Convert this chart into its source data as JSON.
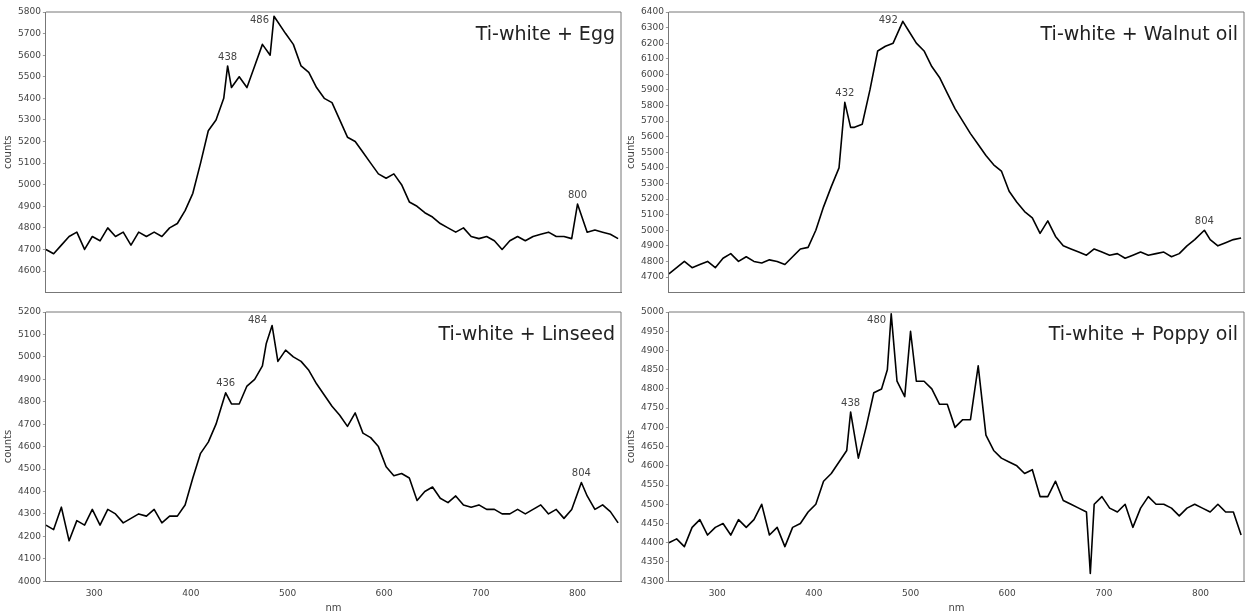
{
  "chart_data": [
    {
      "type": "line",
      "title": "Ti-white + Egg",
      "ylabel": "counts",
      "xlim": [
        250,
        845
      ],
      "xticks": [
        300,
        400,
        500,
        600,
        700,
        800
      ],
      "ylim": [
        4500,
        5800
      ],
      "yticks": [
        4600,
        4700,
        4800,
        4900,
        5000,
        5100,
        5200,
        5300,
        5400,
        5500,
        5600,
        5700,
        5800
      ],
      "tick_labels": "y",
      "grid": false,
      "legend": false,
      "marker": "none",
      "series": [
        {
          "color": "#000000",
          "x": [
            250,
            258,
            266,
            274,
            282,
            290,
            298,
            306,
            314,
            322,
            330,
            338,
            346,
            354,
            362,
            370,
            378,
            386,
            394,
            402,
            410,
            418,
            426,
            434,
            438,
            442,
            450,
            458,
            466,
            474,
            482,
            486,
            498,
            506,
            514,
            522,
            530,
            538,
            546,
            554,
            562,
            570,
            578,
            586,
            594,
            602,
            610,
            618,
            626,
            634,
            642,
            650,
            658,
            666,
            674,
            682,
            690,
            698,
            706,
            714,
            722,
            730,
            738,
            746,
            754,
            762,
            770,
            778,
            786,
            794,
            800,
            810,
            818,
            826,
            834,
            842
          ],
          "values": [
            4700,
            4680,
            4720,
            4760,
            4780,
            4700,
            4760,
            4740,
            4800,
            4760,
            4780,
            4720,
            4780,
            4760,
            4780,
            4760,
            4800,
            4820,
            4880,
            4960,
            5100,
            5250,
            5300,
            5400,
            5550,
            5450,
            5500,
            5450,
            5550,
            5650,
            5600,
            5780,
            5700,
            5650,
            5550,
            5520,
            5450,
            5400,
            5380,
            5300,
            5220,
            5200,
            5150,
            5100,
            5050,
            5030,
            5050,
            5000,
            4920,
            4900,
            4870,
            4850,
            4820,
            4800,
            4780,
            4800,
            4760,
            4750,
            4760,
            4740,
            4700,
            4740,
            4760,
            4740,
            4760,
            4770,
            4780,
            4760,
            4760,
            4750,
            4910,
            4780,
            4790,
            4780,
            4770,
            4750
          ]
        }
      ],
      "annotations": [
        {
          "text": "438",
          "x": 438,
          "y": 5550
        },
        {
          "text": "486",
          "x": 486,
          "y": 5780
        },
        {
          "text": "800",
          "x": 800,
          "y": 4910
        }
      ]
    },
    {
      "type": "line",
      "title": "Ti-white + Walnut oil",
      "ylabel": "counts",
      "xlim": [
        250,
        845
      ],
      "xticks": [
        300,
        400,
        500,
        600,
        700,
        800
      ],
      "ylim": [
        4600,
        6400
      ],
      "yticks": [
        4700,
        4800,
        4900,
        5000,
        5100,
        5200,
        5300,
        5400,
        5500,
        5600,
        5700,
        5800,
        5900,
        6000,
        6100,
        6200,
        6300,
        6400
      ],
      "tick_labels": "y",
      "grid": false,
      "legend": false,
      "marker": "none",
      "series": [
        {
          "color": "#000000",
          "x": [
            250,
            258,
            266,
            274,
            282,
            290,
            298,
            306,
            314,
            322,
            330,
            338,
            346,
            354,
            362,
            370,
            378,
            386,
            394,
            402,
            410,
            418,
            426,
            432,
            438,
            442,
            450,
            458,
            466,
            474,
            482,
            492,
            498,
            506,
            514,
            522,
            530,
            538,
            546,
            554,
            562,
            570,
            578,
            586,
            594,
            602,
            610,
            618,
            626,
            634,
            642,
            650,
            658,
            666,
            674,
            682,
            690,
            698,
            706,
            714,
            722,
            730,
            738,
            746,
            754,
            762,
            770,
            778,
            786,
            794,
            804,
            810,
            818,
            826,
            834,
            842
          ],
          "values": [
            4720,
            4760,
            4800,
            4760,
            4780,
            4800,
            4760,
            4820,
            4850,
            4800,
            4830,
            4800,
            4790,
            4810,
            4800,
            4780,
            4830,
            4880,
            4890,
            5000,
            5150,
            5280,
            5400,
            5820,
            5660,
            5660,
            5680,
            5900,
            6150,
            6180,
            6200,
            6340,
            6280,
            6200,
            6150,
            6050,
            5980,
            5880,
            5780,
            5700,
            5620,
            5550,
            5480,
            5420,
            5380,
            5250,
            5180,
            5120,
            5080,
            4980,
            5060,
            4960,
            4900,
            4880,
            4860,
            4840,
            4880,
            4860,
            4840,
            4850,
            4820,
            4840,
            4860,
            4840,
            4850,
            4860,
            4830,
            4850,
            4900,
            4940,
            5000,
            4940,
            4900,
            4920,
            4940,
            4950
          ]
        }
      ],
      "annotations": [
        {
          "text": "432",
          "x": 432,
          "y": 5820
        },
        {
          "text": "492",
          "x": 492,
          "y": 6340
        },
        {
          "text": "804",
          "x": 804,
          "y": 5000
        }
      ]
    },
    {
      "type": "line",
      "title": "Ti-white + Linseed",
      "xlabel": "nm",
      "ylabel": "counts",
      "xlim": [
        250,
        845
      ],
      "xticks": [
        300,
        400,
        500,
        600,
        700,
        800
      ],
      "ylim": [
        4000,
        5200
      ],
      "yticks": [
        4000,
        4100,
        4200,
        4300,
        4400,
        4500,
        4600,
        4700,
        4800,
        4900,
        5000,
        5100,
        5200
      ],
      "grid": false,
      "legend": false,
      "marker": "none",
      "series": [
        {
          "color": "#000000",
          "x": [
            250,
            258,
            266,
            274,
            282,
            290,
            298,
            306,
            314,
            322,
            330,
            338,
            346,
            354,
            362,
            370,
            378,
            386,
            394,
            402,
            410,
            418,
            426,
            436,
            442,
            450,
            458,
            466,
            474,
            478,
            484,
            490,
            498,
            506,
            514,
            522,
            530,
            538,
            546,
            554,
            562,
            570,
            578,
            586,
            594,
            602,
            610,
            618,
            626,
            634,
            642,
            650,
            658,
            666,
            674,
            682,
            690,
            698,
            706,
            714,
            722,
            730,
            738,
            746,
            754,
            762,
            770,
            778,
            786,
            794,
            804,
            810,
            818,
            826,
            834,
            842
          ],
          "values": [
            4250,
            4230,
            4330,
            4180,
            4270,
            4250,
            4320,
            4250,
            4320,
            4300,
            4260,
            4280,
            4300,
            4290,
            4320,
            4260,
            4290,
            4290,
            4340,
            4460,
            4570,
            4620,
            4700,
            4840,
            4790,
            4790,
            4870,
            4900,
            4960,
            5060,
            5140,
            4980,
            5030,
            5000,
            4980,
            4940,
            4880,
            4830,
            4780,
            4740,
            4690,
            4750,
            4660,
            4640,
            4600,
            4510,
            4470,
            4480,
            4460,
            4360,
            4400,
            4420,
            4370,
            4350,
            4380,
            4340,
            4330,
            4340,
            4320,
            4320,
            4300,
            4300,
            4320,
            4300,
            4320,
            4340,
            4300,
            4320,
            4280,
            4320,
            4440,
            4380,
            4320,
            4340,
            4310,
            4260
          ]
        }
      ],
      "annotations": [
        {
          "text": "436",
          "x": 436,
          "y": 4840
        },
        {
          "text": "484",
          "x": 484,
          "y": 5140
        },
        {
          "text": "804",
          "x": 804,
          "y": 4440
        }
      ]
    },
    {
      "type": "line",
      "title": "Ti-white + Poppy oil",
      "xlabel": "nm",
      "ylabel": "counts",
      "xlim": [
        250,
        845
      ],
      "xticks": [
        300,
        400,
        500,
        600,
        700,
        800
      ],
      "ylim": [
        4300,
        5000
      ],
      "yticks": [
        4300,
        4350,
        4400,
        4450,
        4500,
        4550,
        4600,
        4650,
        4700,
        4750,
        4800,
        4850,
        4900,
        4950,
        5000
      ],
      "grid": false,
      "legend": false,
      "marker": "none",
      "series": [
        {
          "color": "#000000",
          "x": [
            250,
            258,
            266,
            274,
            282,
            290,
            298,
            306,
            314,
            322,
            330,
            338,
            346,
            354,
            362,
            370,
            378,
            386,
            394,
            402,
            410,
            418,
            426,
            434,
            438,
            446,
            454,
            462,
            470,
            476,
            480,
            486,
            494,
            500,
            506,
            514,
            522,
            530,
            538,
            546,
            554,
            562,
            570,
            578,
            586,
            594,
            602,
            610,
            618,
            626,
            634,
            642,
            650,
            658,
            666,
            674,
            682,
            686,
            690,
            698,
            706,
            714,
            722,
            730,
            738,
            746,
            754,
            762,
            770,
            778,
            786,
            794,
            802,
            810,
            818,
            826,
            834,
            842
          ],
          "values": [
            4400,
            4410,
            4390,
            4440,
            4460,
            4420,
            4440,
            4450,
            4420,
            4460,
            4440,
            4460,
            4500,
            4420,
            4440,
            4390,
            4440,
            4450,
            4480,
            4500,
            4560,
            4580,
            4610,
            4640,
            4740,
            4620,
            4700,
            4790,
            4800,
            4850,
            4995,
            4820,
            4780,
            4950,
            4820,
            4820,
            4800,
            4760,
            4760,
            4700,
            4720,
            4720,
            4860,
            4680,
            4640,
            4620,
            4610,
            4600,
            4580,
            4590,
            4520,
            4520,
            4560,
            4510,
            4500,
            4490,
            4480,
            4320,
            4500,
            4520,
            4490,
            4480,
            4500,
            4440,
            4490,
            4520,
            4500,
            4500,
            4490,
            4470,
            4490,
            4500,
            4490,
            4480,
            4500,
            4480,
            4480,
            4420
          ]
        }
      ],
      "annotations": [
        {
          "text": "438",
          "x": 438,
          "y": 4740
        },
        {
          "text": "480",
          "x": 480,
          "y": 4995
        }
      ]
    }
  ]
}
